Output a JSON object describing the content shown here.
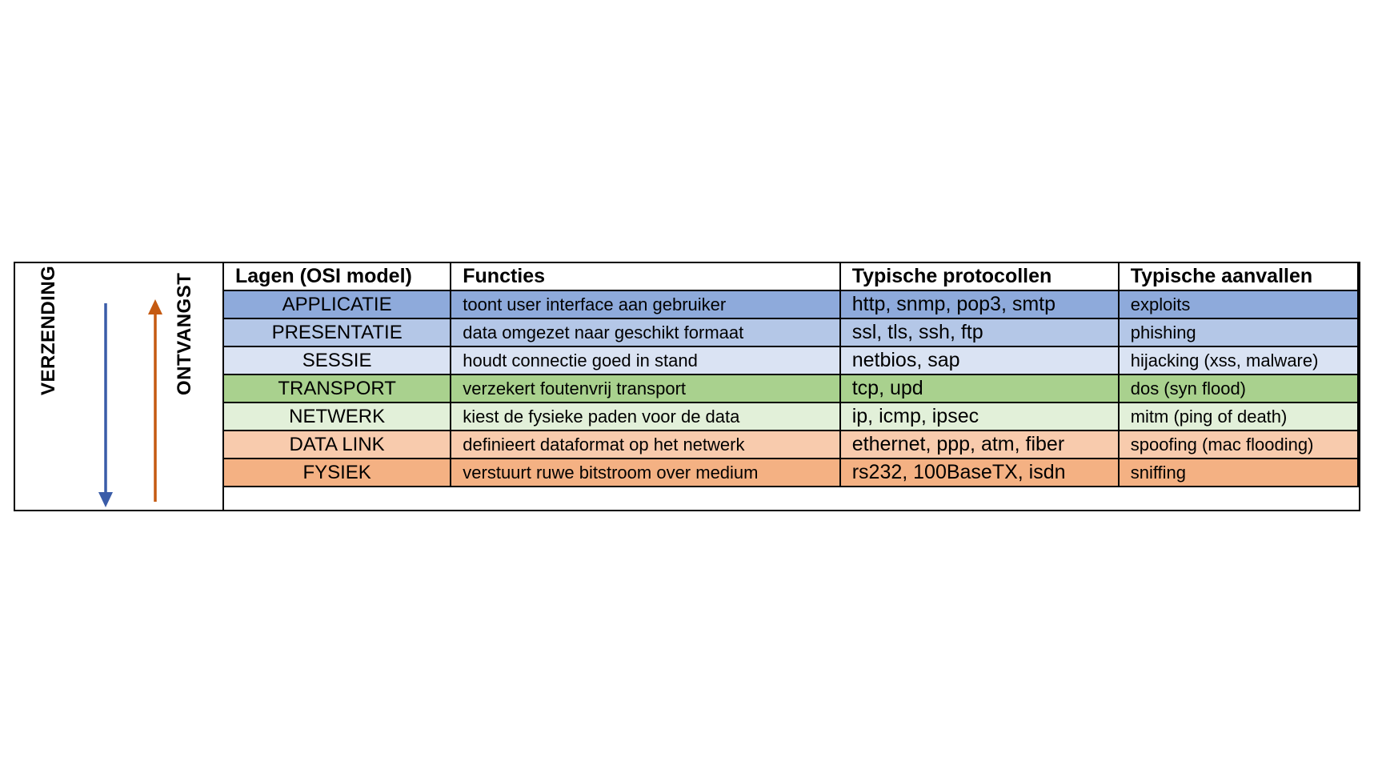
{
  "direction_labels": {
    "send": "VERZENDING",
    "receive": "ONTVANGST"
  },
  "colors": {
    "send_arrow": "#3a5ca8",
    "receive_arrow": "#c55a11",
    "border": "#000000"
  },
  "table": {
    "headers": [
      "Lagen (OSI model)",
      "Functies",
      "Typische protocollen",
      "Typische aanvallen"
    ],
    "rows": [
      {
        "layer": "APPLICATIE",
        "function": "toont user interface aan gebruiker",
        "protocols": "http, snmp, pop3, smtp",
        "attacks": "exploits",
        "color": "#8eaadb"
      },
      {
        "layer": "PRESENTATIE",
        "function": "data omgezet naar geschikt formaat",
        "protocols": "ssl, tls, ssh, ftp",
        "attacks": "phishing",
        "color": "#b4c7e7"
      },
      {
        "layer": "SESSIE",
        "function": "houdt connectie goed in stand",
        "protocols": "netbios, sap",
        "attacks": "hijacking (xss, malware)",
        "color": "#dae3f3"
      },
      {
        "layer": "TRANSPORT",
        "function": "verzekert foutenvrij transport",
        "protocols": "tcp, upd",
        "attacks": "dos (syn flood)",
        "color": "#a9d18e"
      },
      {
        "layer": "NETWERK",
        "function": "kiest de fysieke paden voor de data",
        "protocols": "ip, icmp, ipsec",
        "attacks": "mitm (ping of death)",
        "color": "#e2f0d9"
      },
      {
        "layer": "DATA LINK",
        "function": "definieert dataformat op het netwerk",
        "protocols": "ethernet, ppp, atm, fiber",
        "attacks": "spoofing (mac flooding)",
        "color": "#f8cbad"
      },
      {
        "layer": "FYSIEK",
        "function": "verstuurt ruwe bitstroom over medium",
        "protocols": "rs232, 100BaseTX, isdn",
        "attacks": "sniffing",
        "color": "#f4b183"
      }
    ]
  }
}
